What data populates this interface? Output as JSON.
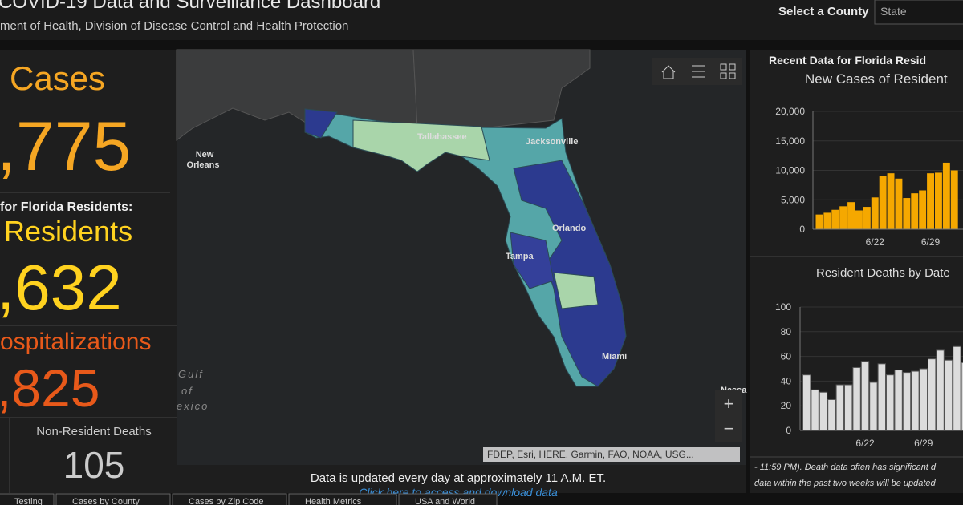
{
  "header": {
    "title": "COVID-19 Data and Surveillance Dashboard",
    "subtitle": "ment of Health, Division of Disease Control and Health Protection",
    "county_label": "Select a County",
    "county_value": "State"
  },
  "left_panel": {
    "cases_label": "Cases",
    "cases_value": ",775",
    "residents_heading": "for Florida Residents:",
    "residents_label": "Residents",
    "residents_value": ",632",
    "hospitalizations_label": "ospitalizations",
    "hospitalizations_value": ",825",
    "nonresident_deaths_label": "Non-Resident Deaths",
    "nonresident_deaths_value": "105"
  },
  "map": {
    "labels": {
      "new": "New",
      "orleans": "Orleans",
      "tallahassee": "Tallahassee",
      "jacksonville": "Jacksonville",
      "orlando": "Orlando",
      "tampa": "Tampa",
      "miami": "Miami",
      "gulf": "Gulf",
      "of": "of",
      "mexico": "exico",
      "nassau": "Nassa"
    },
    "attribution": "FDEP, Esri, HERE, Garmin, FAO, NOAA, USG...",
    "zoom_in": "+",
    "zoom_out": "−",
    "update_note": "Data is updated every day at approximately 11 A.M. ET.",
    "download_link": "Click here to access and download data"
  },
  "right_panel": {
    "heading": "Recent Data for Florida Resid",
    "note_line_1": "- 11:59 PM). Death data often has significant d",
    "note_line_2": "data within the past two weeks will be updated"
  },
  "charts": [
    {
      "type": "bar",
      "title": "New Cases of Resident",
      "categories": [
        null,
        null,
        null,
        null,
        null,
        null,
        null,
        "6/22",
        null,
        null,
        null,
        null,
        null,
        null,
        "6/29",
        null,
        null,
        null
      ],
      "values": [
        2500,
        2800,
        3300,
        3900,
        4600,
        3200,
        3800,
        5400,
        9100,
        9500,
        8600,
        5300,
        6100,
        6600,
        9500,
        9600,
        11300,
        10000
      ],
      "color": "#f5a800",
      "ylim": [
        0,
        20000
      ],
      "yticks": [
        0,
        {
          "value": 5000,
          "label": "5,000"
        },
        {
          "value": 10000,
          "label": "10,000"
        },
        {
          "value": 15000,
          "label": "15,000"
        },
        {
          "value": 20000,
          "label": "20,000"
        }
      ],
      "grid": true
    },
    {
      "type": "bar",
      "title": "Resident Deaths by Date",
      "categories": [
        null,
        null,
        null,
        null,
        null,
        null,
        null,
        "6/22",
        null,
        null,
        null,
        null,
        null,
        null,
        "6/29",
        null,
        null,
        null,
        null,
        null
      ],
      "values": [
        45,
        33,
        31,
        25,
        37,
        37,
        51,
        56,
        39,
        54,
        45,
        49,
        47,
        48,
        50,
        58,
        65,
        57,
        68,
        55
      ],
      "color": "#dcdcdc",
      "ylim": [
        0,
        100
      ],
      "yticks": [
        0,
        20,
        40,
        60,
        80,
        100
      ],
      "grid": true
    }
  ],
  "tabs": [
    "Testing",
    "Cases by County",
    "Cases by Zip Code",
    "Health Metrics",
    "USA and World"
  ]
}
